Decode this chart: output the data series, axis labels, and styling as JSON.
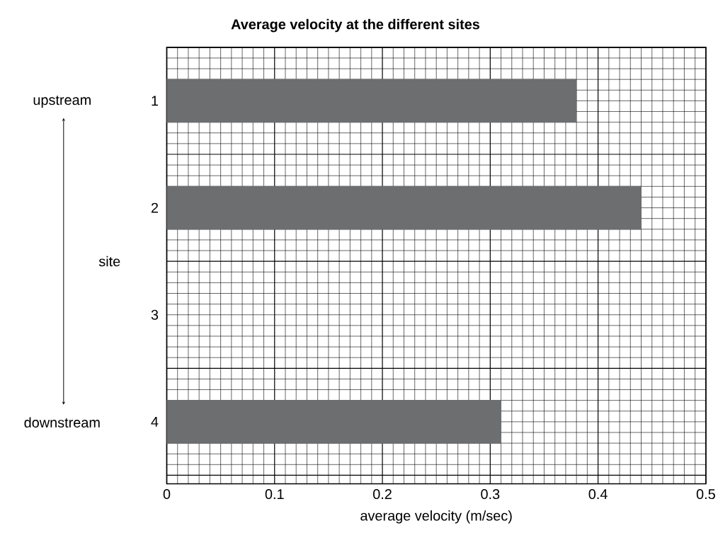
{
  "chart_data": {
    "type": "bar",
    "orientation": "horizontal",
    "title": "Average velocity at the different sites",
    "xlabel": "average velocity (m/sec)",
    "ylabel": "site",
    "categories": [
      "1",
      "2",
      "3",
      "4"
    ],
    "values": [
      0.38,
      0.44,
      null,
      0.31
    ],
    "color": "#6d6e70",
    "xlim": [
      0,
      0.5
    ],
    "xticks": [
      0,
      0.1,
      0.2,
      0.3,
      0.4,
      0.5
    ],
    "grid": true,
    "annotations": [
      "upstream",
      "downstream"
    ]
  }
}
